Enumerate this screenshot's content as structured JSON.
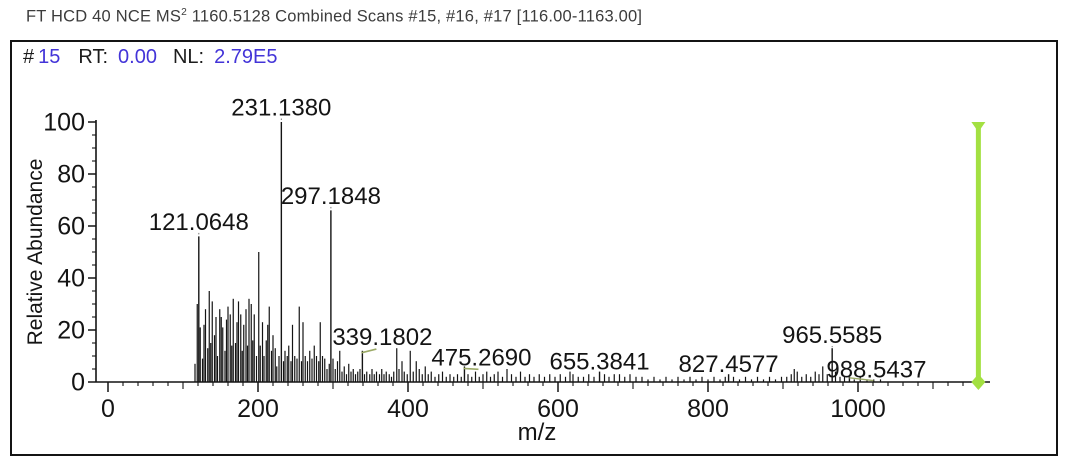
{
  "title": {
    "text_before_sup": "FT HCD 40 NCE MS",
    "sup": "2",
    "text_after_sup": " 1160.5128 Combined Scans #15, #16, #17 [116.00-1163.00]"
  },
  "header": {
    "hash": "#",
    "scan_number": "15",
    "rt_label": "RT:",
    "rt_value": "0.00",
    "nl_label": "NL:",
    "nl_value": "2.79E5"
  },
  "colors": {
    "value_blue": "#4334d8",
    "precursor_green": "#a3e042",
    "callout_olive": "#9caa68",
    "ink": "#141414"
  },
  "chart_data": {
    "type": "bar",
    "subtype": "mass-spectrum",
    "title": "",
    "xlabel": "m/z",
    "ylabel": "Relative Abundance",
    "xlim": [
      0,
      1176
    ],
    "ylim": [
      0,
      100
    ],
    "grid": false,
    "x_major_ticks": [
      0,
      200,
      400,
      600,
      800,
      1000
    ],
    "x_minor_step": 20,
    "y_major_ticks": [
      0,
      20,
      40,
      60,
      80,
      100
    ],
    "y_minor_step": 5,
    "labeled_peaks": [
      {
        "mz": 121.0648,
        "intensity": 56,
        "label": "121.0648",
        "dx": 0,
        "label_y_pct": 58.5,
        "connector": "dotted"
      },
      {
        "mz": 231.138,
        "intensity": 100,
        "label": "231.1380",
        "dx": 0,
        "label_y_pct": 102.5,
        "connector": "dotted"
      },
      {
        "mz": 297.1848,
        "intensity": 66,
        "label": "297.1848",
        "dx": 0,
        "label_y_pct": 68.5,
        "connector": "dotted"
      },
      {
        "mz": 339.1802,
        "intensity": 12,
        "label": "339.1802",
        "dx": 20,
        "label_y_pct": 14.2,
        "connector": "slash"
      },
      {
        "mz": 475.269,
        "intensity": 6,
        "label": "475.2690",
        "dx": 17,
        "label_y_pct": 6.4,
        "connector": "slash"
      },
      {
        "mz": 655.3841,
        "intensity": 4,
        "label": "655.3841",
        "dx": 0,
        "label_y_pct": 4.8,
        "connector": "dotted"
      },
      {
        "mz": 827.4577,
        "intensity": 3,
        "label": "827.4577",
        "dx": 0,
        "label_y_pct": 3.9,
        "connector": "dotted"
      },
      {
        "mz": 965.5585,
        "intensity": 13,
        "label": "965.5585",
        "dx": 0,
        "label_y_pct": 15.0,
        "connector": "dotted"
      },
      {
        "mz": 988.5437,
        "intensity": 2,
        "label": "988.5437",
        "dx": 27,
        "label_y_pct": 1.7,
        "connector": "long"
      }
    ],
    "precursor_marker": {
      "mz": 1160.5128,
      "intensity": 100
    },
    "peaks": [
      [
        116,
        7
      ],
      [
        119,
        30
      ],
      [
        123,
        21
      ],
      [
        126,
        9
      ],
      [
        128,
        22
      ],
      [
        130,
        28
      ],
      [
        133,
        13
      ],
      [
        135,
        35
      ],
      [
        137,
        15
      ],
      [
        139,
        31
      ],
      [
        142,
        18
      ],
      [
        144,
        25
      ],
      [
        146,
        10
      ],
      [
        149,
        28
      ],
      [
        151,
        25
      ],
      [
        153,
        21
      ],
      [
        156,
        12
      ],
      [
        158,
        24
      ],
      [
        160,
        29
      ],
      [
        163,
        26
      ],
      [
        165,
        14
      ],
      [
        167,
        32
      ],
      [
        170,
        15
      ],
      [
        172,
        23
      ],
      [
        174,
        31
      ],
      [
        177,
        26
      ],
      [
        179,
        12
      ],
      [
        181,
        22
      ],
      [
        184,
        28
      ],
      [
        186,
        14
      ],
      [
        188,
        32
      ],
      [
        191,
        30
      ],
      [
        193,
        16
      ],
      [
        195,
        26
      ],
      [
        198,
        10
      ],
      [
        201,
        50
      ],
      [
        203,
        14
      ],
      [
        206,
        23
      ],
      [
        208,
        10
      ],
      [
        211,
        16
      ],
      [
        213,
        22
      ],
      [
        215,
        29
      ],
      [
        218,
        12
      ],
      [
        220,
        18
      ],
      [
        223,
        13
      ],
      [
        225,
        6
      ],
      [
        228,
        10
      ],
      [
        234,
        8
      ],
      [
        236,
        12
      ],
      [
        239,
        10
      ],
      [
        241,
        14
      ],
      [
        244,
        8
      ],
      [
        246,
        22
      ],
      [
        249,
        10
      ],
      [
        252,
        9
      ],
      [
        255,
        29
      ],
      [
        258,
        8
      ],
      [
        260,
        23
      ],
      [
        263,
        10
      ],
      [
        266,
        8
      ],
      [
        269,
        12
      ],
      [
        272,
        9
      ],
      [
        275,
        14
      ],
      [
        278,
        10
      ],
      [
        281,
        8
      ],
      [
        283,
        23
      ],
      [
        286,
        10
      ],
      [
        289,
        9
      ],
      [
        292,
        5
      ],
      [
        295,
        7
      ],
      [
        300,
        9
      ],
      [
        303,
        5
      ],
      [
        306,
        8
      ],
      [
        309,
        12
      ],
      [
        312,
        4
      ],
      [
        315,
        6
      ],
      [
        318,
        3
      ],
      [
        321,
        7
      ],
      [
        324,
        4
      ],
      [
        327,
        5
      ],
      [
        330,
        3
      ],
      [
        333,
        4
      ],
      [
        336,
        5
      ],
      [
        342,
        3
      ],
      [
        345,
        4
      ],
      [
        349,
        3
      ],
      [
        352,
        5
      ],
      [
        355,
        3
      ],
      [
        358,
        4
      ],
      [
        362,
        3
      ],
      [
        365,
        5
      ],
      [
        368,
        3
      ],
      [
        371,
        4
      ],
      [
        375,
        3
      ],
      [
        378,
        2
      ],
      [
        381,
        4
      ],
      [
        385,
        13
      ],
      [
        388,
        5
      ],
      [
        392,
        8
      ],
      [
        395,
        4
      ],
      [
        399,
        3
      ],
      [
        403,
        12
      ],
      [
        407,
        4
      ],
      [
        411,
        8
      ],
      [
        415,
        5
      ],
      [
        419,
        3
      ],
      [
        423,
        6
      ],
      [
        427,
        3
      ],
      [
        431,
        4
      ],
      [
        436,
        2
      ],
      [
        441,
        3
      ],
      [
        446,
        4
      ],
      [
        451,
        2
      ],
      [
        456,
        3
      ],
      [
        461,
        2
      ],
      [
        466,
        3
      ],
      [
        471,
        2
      ],
      [
        480,
        3
      ],
      [
        485,
        2
      ],
      [
        490,
        4
      ],
      [
        495,
        2
      ],
      [
        500,
        3
      ],
      [
        505,
        4
      ],
      [
        510,
        2
      ],
      [
        515,
        3
      ],
      [
        520,
        4
      ],
      [
        526,
        2
      ],
      [
        532,
        5
      ],
      [
        538,
        3
      ],
      [
        544,
        2
      ],
      [
        550,
        4
      ],
      [
        556,
        2
      ],
      [
        562,
        3
      ],
      [
        568,
        2
      ],
      [
        575,
        3
      ],
      [
        582,
        2
      ],
      [
        589,
        3
      ],
      [
        596,
        2
      ],
      [
        603,
        3
      ],
      [
        610,
        2
      ],
      [
        616,
        4
      ],
      [
        620,
        3
      ],
      [
        627,
        2
      ],
      [
        634,
        2
      ],
      [
        641,
        3
      ],
      [
        648,
        2
      ],
      [
        662,
        3
      ],
      [
        668,
        2
      ],
      [
        675,
        3
      ],
      [
        682,
        3
      ],
      [
        689,
        2
      ],
      [
        696,
        3
      ],
      [
        704,
        2
      ],
      [
        712,
        2
      ],
      [
        720,
        1
      ],
      [
        728,
        2
      ],
      [
        736,
        1
      ],
      [
        744,
        2
      ],
      [
        752,
        1
      ],
      [
        760,
        2
      ],
      [
        768,
        1
      ],
      [
        776,
        2
      ],
      [
        784,
        1
      ],
      [
        792,
        2
      ],
      [
        800,
        1
      ],
      [
        808,
        2
      ],
      [
        816,
        1
      ],
      [
        823,
        2
      ],
      [
        834,
        2
      ],
      [
        842,
        1
      ],
      [
        850,
        2
      ],
      [
        858,
        1
      ],
      [
        866,
        2
      ],
      [
        874,
        1
      ],
      [
        882,
        2
      ],
      [
        890,
        1
      ],
      [
        898,
        2
      ],
      [
        905,
        2
      ],
      [
        911,
        3
      ],
      [
        915,
        5
      ],
      [
        919,
        4
      ],
      [
        925,
        2
      ],
      [
        931,
        3
      ],
      [
        937,
        2
      ],
      [
        943,
        4
      ],
      [
        948,
        3
      ],
      [
        953,
        6
      ],
      [
        959,
        3
      ],
      [
        970,
        4
      ],
      [
        976,
        2
      ],
      [
        982,
        2
      ],
      [
        995,
        1
      ],
      [
        1003,
        2
      ],
      [
        1012,
        1
      ],
      [
        1021,
        1
      ],
      [
        1030,
        1
      ]
    ]
  }
}
